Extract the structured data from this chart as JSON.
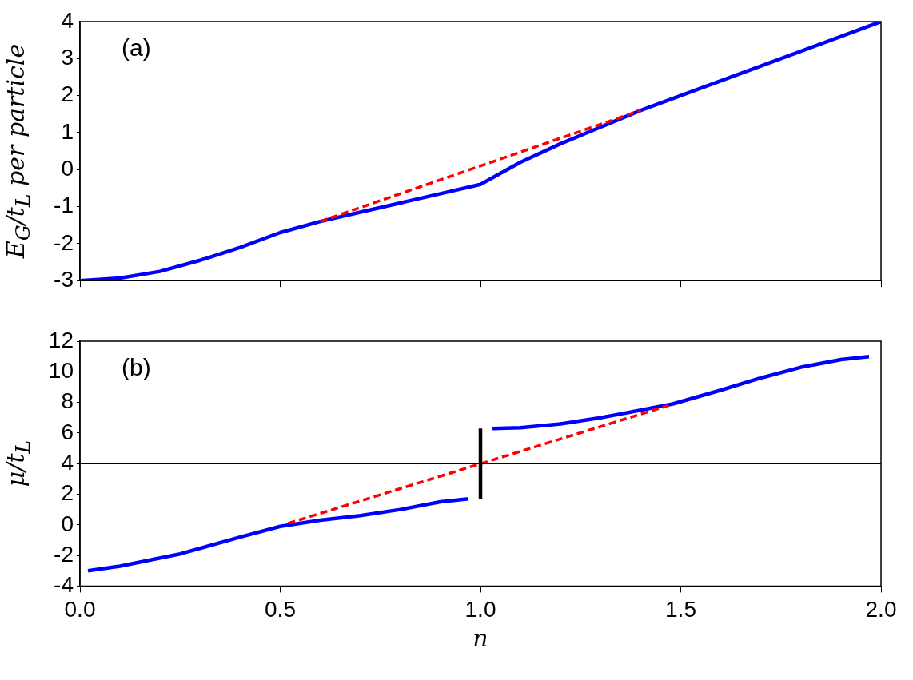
{
  "chart_data": [
    {
      "type": "line",
      "ylabel": "E$_{G}$/t$_{L}$ per particle",
      "annotations": [
        "(a)"
      ],
      "xlim": [
        0,
        2
      ],
      "xticks": [
        0,
        0.5,
        1,
        1.5,
        2
      ],
      "ylim": [
        -3,
        4
      ],
      "yticks": [
        -3,
        -2,
        -1,
        0,
        1,
        2,
        3,
        4
      ],
      "tick_labels": "y",
      "grid": false,
      "legend": false,
      "marker": "none",
      "series": [
        {
          "color": "#0000ff",
          "x": [
            0,
            0.1,
            0.2,
            0.3,
            0.4,
            0.5,
            0.6,
            0.7,
            0.8,
            0.9,
            1.0,
            1.1,
            1.2,
            1.3,
            1.4,
            1.5,
            1.6,
            1.7,
            1.8,
            1.9,
            2.0
          ],
          "values": [
            -3,
            -2.93,
            -2.75,
            -2.45,
            -2.1,
            -1.7,
            -1.4,
            -1.15,
            -0.9,
            -0.65,
            -0.4,
            0.2,
            0.7,
            1.15,
            1.6,
            2.0,
            2.4,
            2.8,
            3.2,
            3.6,
            4.0
          ]
        },
        {
          "color": "#ff0000",
          "line_style": "dashed",
          "x": [
            0.6,
            1.4
          ],
          "values": [
            -1.4,
            1.6
          ]
        }
      ]
    },
    {
      "type": "line",
      "xlabel": "n",
      "ylabel": "μ/t$_{L}$",
      "annotations": [
        "(b)"
      ],
      "xlim": [
        0,
        2
      ],
      "xticks": [
        {
          "value": 0,
          "label": "0.0"
        },
        0.5,
        {
          "value": 1,
          "label": "1.0"
        },
        1.5,
        {
          "value": 2,
          "label": "2.0"
        }
      ],
      "ylim": [
        -4,
        12
      ],
      "yticks": [
        -4,
        -2,
        0,
        2,
        4,
        6,
        8,
        10,
        12
      ],
      "grid": false,
      "legend": false,
      "marker": "none",
      "ref_lines": [
        {
          "axis": "y",
          "value": 4,
          "color": "#000000"
        }
      ],
      "series": [
        {
          "color": "#0000ff",
          "x": [
            0.02,
            0.1,
            0.25,
            0.4,
            0.5,
            0.6,
            0.7,
            0.8,
            0.9,
            0.97
          ],
          "values": [
            -3,
            -2.7,
            -1.9,
            -0.8,
            -0.1,
            0.3,
            0.6,
            1.0,
            1.5,
            1.7
          ]
        },
        {
          "color": "#0000ff",
          "x": [
            1.03,
            1.1,
            1.2,
            1.3,
            1.4,
            1.48,
            1.6,
            1.7,
            1.8,
            1.9,
            1.97
          ],
          "values": [
            6.3,
            6.35,
            6.6,
            7.0,
            7.5,
            7.9,
            8.8,
            9.6,
            10.3,
            10.8,
            11.0
          ]
        },
        {
          "color": "#ff0000",
          "line_style": "dashed",
          "x": [
            0.52,
            1.47
          ],
          "values": [
            0.1,
            7.8
          ]
        },
        {
          "color": "#000000",
          "x": [
            1.0,
            1.0
          ],
          "values": [
            1.7,
            6.3
          ]
        }
      ]
    }
  ]
}
